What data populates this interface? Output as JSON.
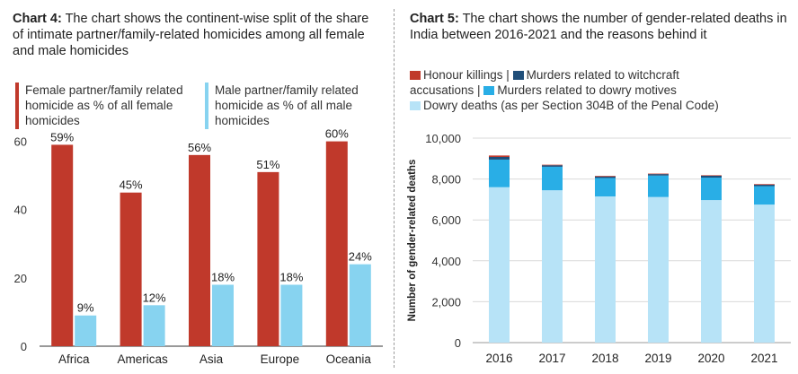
{
  "colors": {
    "female": "#c0392b",
    "male": "#87d3f0",
    "honour": "#c0392b",
    "witchcraft": "#1f4e79",
    "dowry_murder": "#29aee6",
    "dowry_death": "#b7e3f7",
    "grid": "#d9d9d9"
  },
  "chart4": {
    "label": "Chart 4:",
    "text": "The chart shows the continent-wise split of the share of intimate partner/family-related homicides among all female and male homicides"
  },
  "chart5": {
    "label": "Chart 5:",
    "text": "The chart shows the number of gender-related deaths in India between 2016-2021 and the reasons behind it"
  },
  "chart_data": [
    {
      "type": "bar",
      "categories": [
        "Africa",
        "Americas",
        "Asia",
        "Europe",
        "Oceania"
      ],
      "series": [
        {
          "name": "Female partner/family related homicide as % of all female homicides",
          "values": [
            59,
            45,
            56,
            51,
            60
          ]
        },
        {
          "name": "Male partner/family related homicide as % of all male homicides",
          "values": [
            9,
            12,
            18,
            18,
            24
          ]
        }
      ],
      "data_labels": [
        [
          "59%",
          "45%",
          "56%",
          "51%",
          "60%"
        ],
        [
          "9%",
          "12%",
          "18%",
          "18%",
          "24%"
        ]
      ],
      "yticks": [
        "0",
        "20",
        "40",
        "60"
      ],
      "ylim": [
        0,
        62
      ],
      "legend": "top",
      "grid": false
    },
    {
      "type": "bar",
      "stacked": true,
      "categories": [
        "2016",
        "2017",
        "2018",
        "2019",
        "2020",
        "2021"
      ],
      "series": [
        {
          "name": "Dowry deaths (as per Section 304B of the Penal Code)",
          "values": [
            7600,
            7450,
            7150,
            7120,
            6970,
            6750
          ]
        },
        {
          "name": "Murders related to dowry motives",
          "values": [
            1350,
            1150,
            900,
            1050,
            1100,
            900
          ]
        },
        {
          "name": "Murders related to witchcraft accusations",
          "values": [
            130,
            75,
            75,
            70,
            90,
            70
          ]
        },
        {
          "name": "Honour killings",
          "values": [
            70,
            25,
            30,
            25,
            25,
            30
          ]
        }
      ],
      "legend_row1": [
        "Honour killings |",
        "Murders related to witchcraft"
      ],
      "legend_row2": [
        "accusations |",
        "Murders related to dowry motives"
      ],
      "legend_row3": "Dowry deaths (as per Section 304B of the Penal Code)",
      "yticks": [
        "0",
        "2,000",
        "4,000",
        "6,000",
        "8,000",
        "10,000"
      ],
      "ylim": [
        0,
        10000
      ],
      "ylabel": "Number of gender-related deaths",
      "legend": "top",
      "grid": true
    }
  ]
}
